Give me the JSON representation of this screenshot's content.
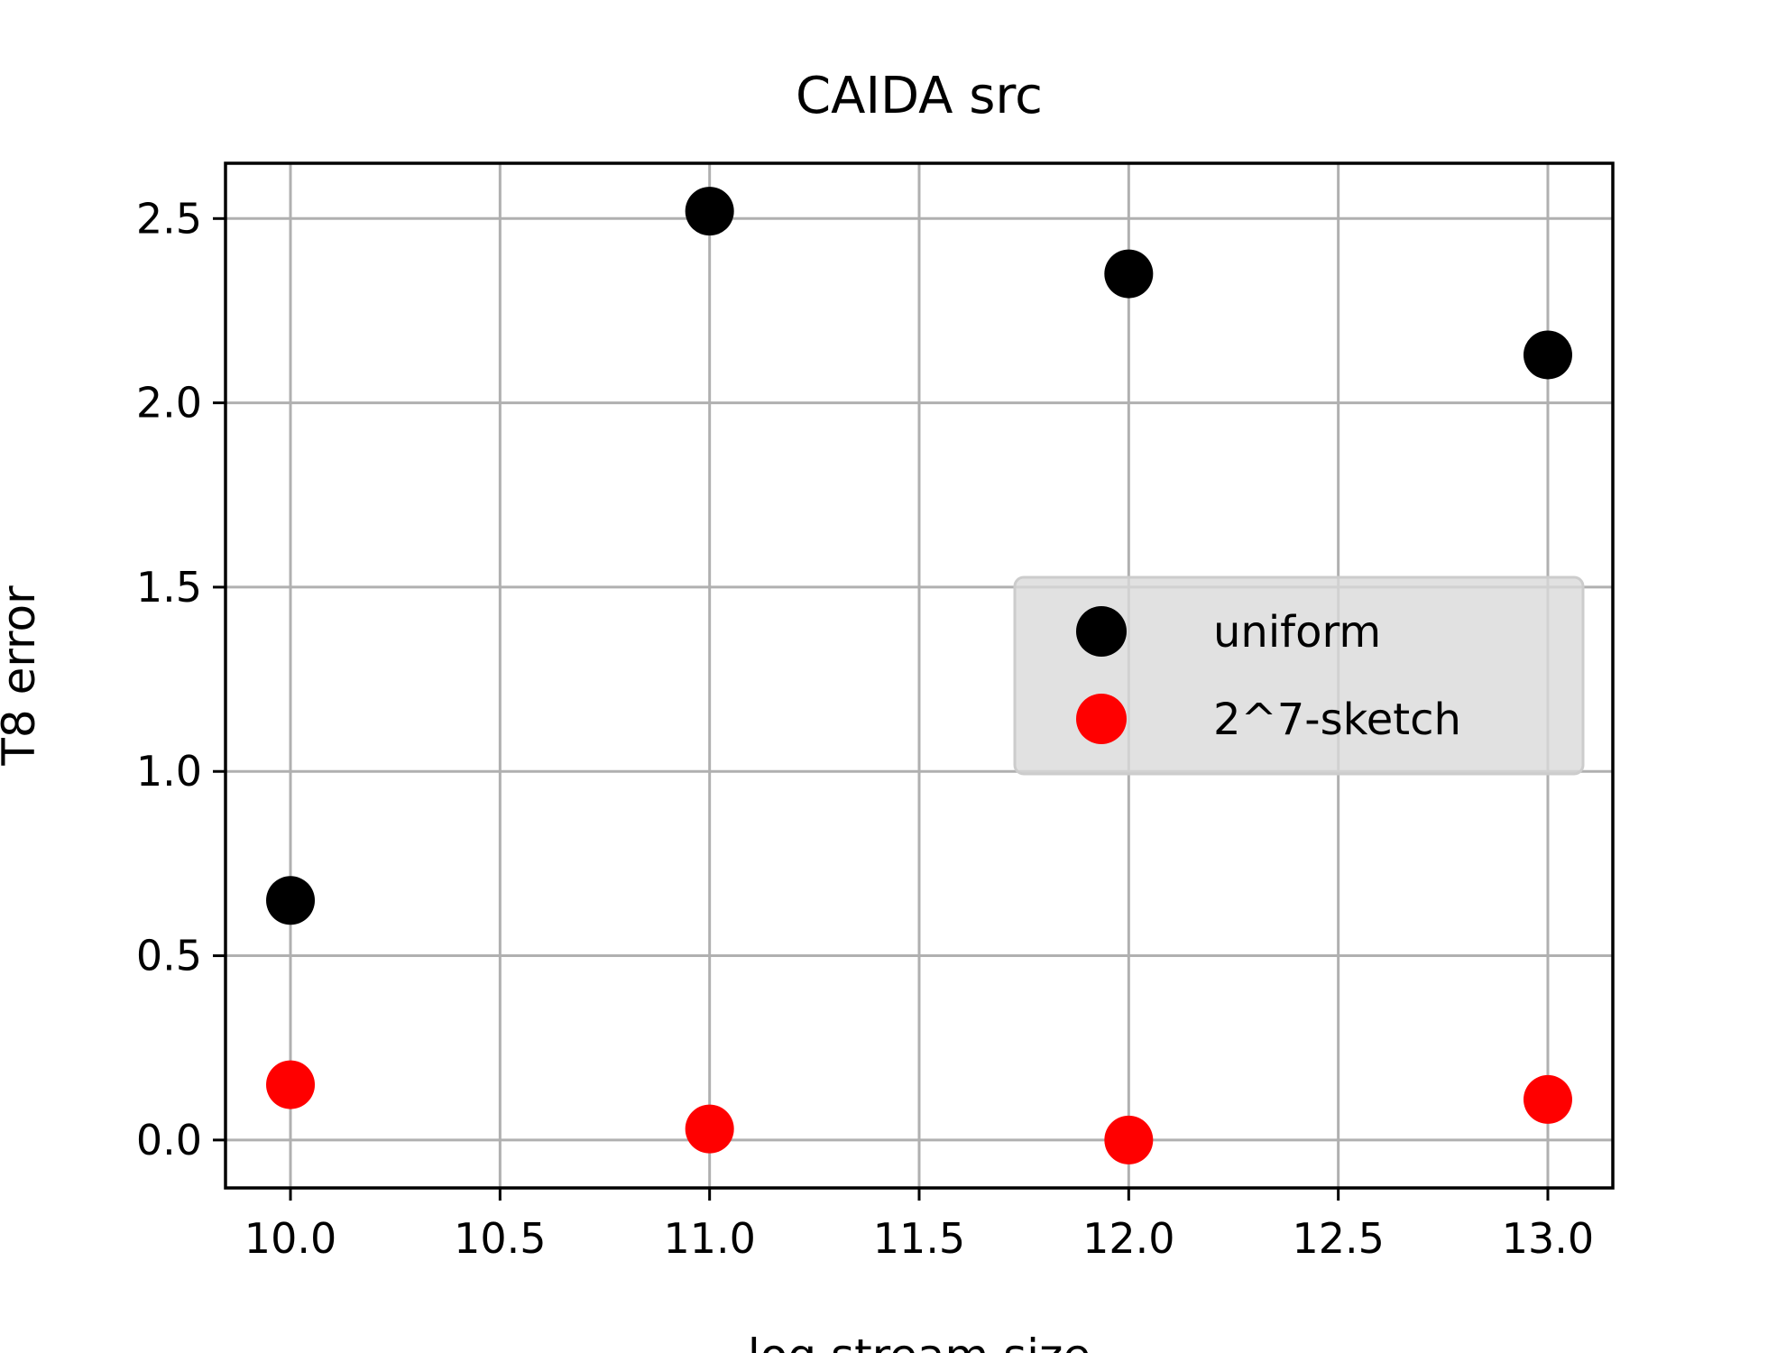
{
  "chart_data": {
    "type": "scatter",
    "title": "CAIDA src",
    "xlabel": "log stream size",
    "ylabel": "T8 error",
    "xlim": [
      9.845,
      13.155
    ],
    "ylim": [
      -0.13,
      2.65
    ],
    "xticks": [
      "10.0",
      "10.5",
      "11.0",
      "11.5",
      "12.0",
      "12.5",
      "13.0"
    ],
    "yticks": [
      "0.0",
      "0.5",
      "1.0",
      "1.5",
      "2.0",
      "2.5"
    ],
    "grid": true,
    "legend_position": "center-right",
    "series": [
      {
        "name": "uniform",
        "color": "#000000",
        "x": [
          10,
          11,
          12,
          13
        ],
        "y": [
          0.65,
          2.52,
          2.35,
          2.13
        ]
      },
      {
        "name": "2^7-sketch",
        "color": "#ff0000",
        "x": [
          10,
          11,
          12,
          13
        ],
        "y": [
          0.15,
          0.03,
          0.0,
          0.11
        ]
      }
    ]
  }
}
